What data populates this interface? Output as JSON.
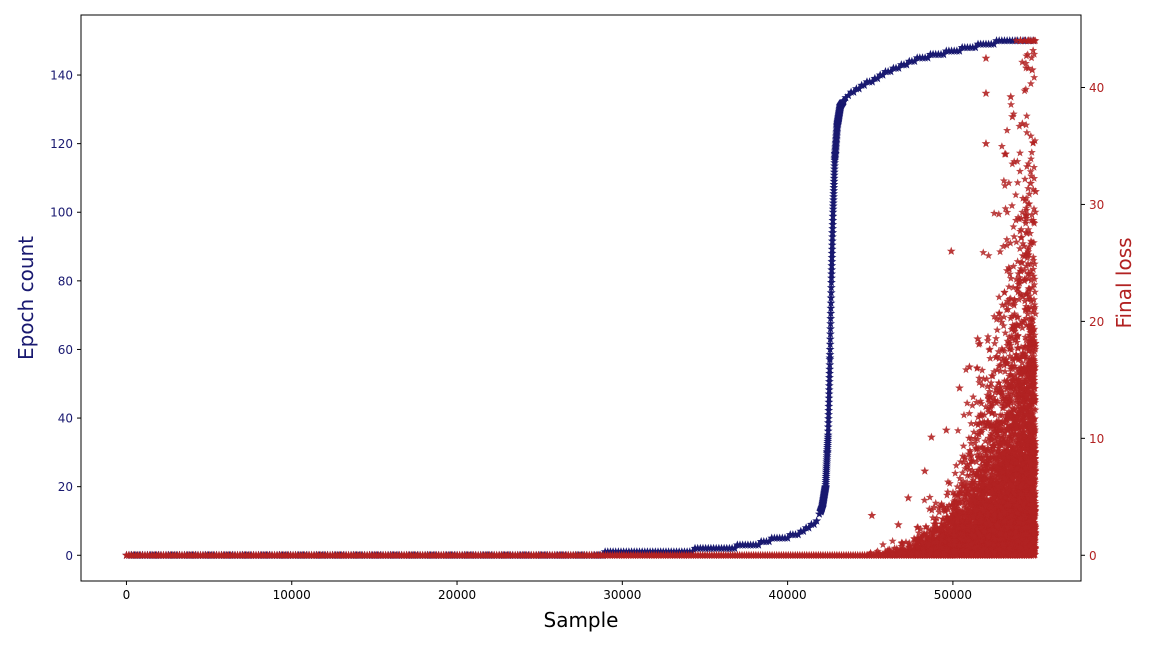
{
  "chart_data": {
    "type": "scatter",
    "marker": "star",
    "title": "",
    "xlabel": "Sample",
    "ylabel_left": "Epoch count",
    "ylabel_right": "Final loss",
    "xlim": [
      -2750,
      57750
    ],
    "ylim_left": [
      -7.5,
      157.5
    ],
    "ylim_right": [
      -2.2,
      46.2
    ],
    "x_ticks": [
      0,
      10000,
      20000,
      30000,
      40000,
      50000
    ],
    "y_left_ticks": [
      0,
      20,
      40,
      60,
      80,
      100,
      120,
      140
    ],
    "y_right_ticks": [
      0,
      10,
      20,
      30,
      40
    ],
    "grid": false,
    "legend": "none",
    "colors": {
      "left": "#191970",
      "right": "#b22222",
      "axis": "#000000"
    },
    "series": [
      {
        "axis": "left",
        "description_points": [
          [
            0,
            0
          ],
          [
            28800,
            0
          ],
          [
            28900,
            1
          ],
          [
            34200,
            1
          ],
          [
            34300,
            2
          ],
          [
            36800,
            2
          ],
          [
            36900,
            3
          ],
          [
            38300,
            3
          ],
          [
            38400,
            4
          ],
          [
            39600,
            5
          ],
          [
            40500,
            6
          ],
          [
            41200,
            8
          ],
          [
            41800,
            10
          ],
          [
            42100,
            14
          ],
          [
            42300,
            20
          ],
          [
            42450,
            35
          ],
          [
            42550,
            55
          ],
          [
            42650,
            80
          ],
          [
            42750,
            100
          ],
          [
            42850,
            115
          ],
          [
            43000,
            125
          ],
          [
            43200,
            131
          ],
          [
            43600,
            134
          ],
          [
            44200,
            136
          ],
          [
            45000,
            138
          ],
          [
            46000,
            141
          ],
          [
            47000,
            143
          ],
          [
            48000,
            145
          ],
          [
            49000,
            146
          ],
          [
            50000,
            147
          ],
          [
            51000,
            148
          ],
          [
            52000,
            149
          ],
          [
            53000,
            150
          ],
          [
            55000,
            150
          ]
        ]
      },
      {
        "axis": "right",
        "baseline": 0,
        "baseline_range": [
          0,
          55000
        ],
        "scatter_onset": 44000,
        "notable_points": [
          [
            49900,
            26
          ],
          [
            52000,
            42.5
          ],
          [
            52000,
            39.5
          ],
          [
            53500,
            39.2
          ],
          [
            53600,
            37.5
          ],
          [
            54200,
            36.9
          ],
          [
            54800,
            41.5
          ],
          [
            54100,
            44.0
          ],
          [
            52000,
            35.2
          ],
          [
            54700,
            31.8
          ],
          [
            55000,
            31.1
          ],
          [
            45100,
            3.4
          ],
          [
            46700,
            2.6
          ],
          [
            47300,
            4.9
          ],
          [
            48300,
            7.2
          ],
          [
            48700,
            10.1
          ],
          [
            49600,
            10.7
          ],
          [
            50400,
            14.3
          ],
          [
            51000,
            16.1
          ],
          [
            51500,
            18.5
          ]
        ]
      }
    ]
  }
}
